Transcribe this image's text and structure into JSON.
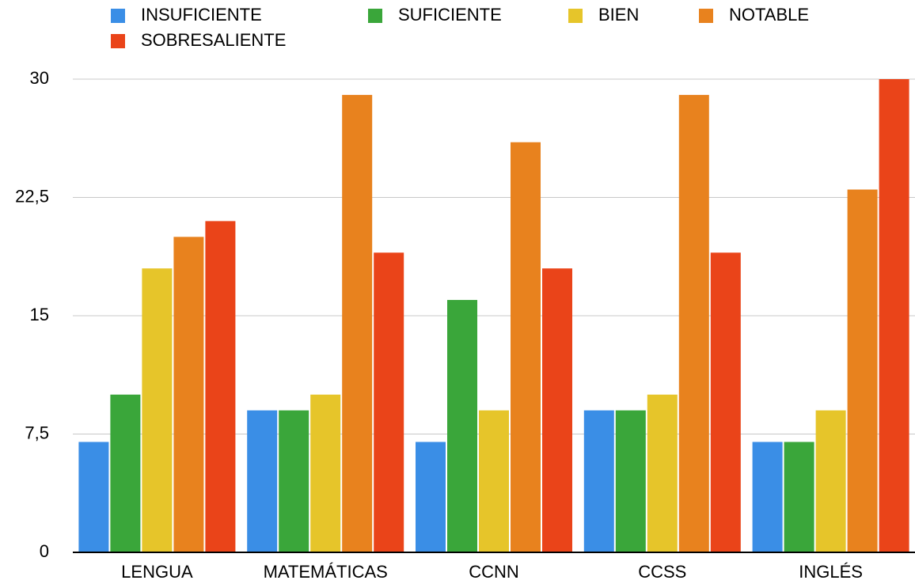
{
  "chart_data": {
    "type": "bar",
    "categories": [
      "LENGUA",
      "MATEMÁTICAS",
      "CCNN",
      "CCSS",
      "INGLÉS"
    ],
    "series": [
      {
        "name": "INSUFICIENTE",
        "color": "#3a8ee6",
        "values": [
          7,
          9,
          7,
          9,
          7
        ]
      },
      {
        "name": "SUFICIENTE",
        "color": "#3aa63a",
        "values": [
          10,
          9,
          16,
          9,
          7
        ]
      },
      {
        "name": "BIEN",
        "color": "#e6c52a",
        "values": [
          18,
          10,
          9,
          10,
          9
        ]
      },
      {
        "name": "NOTABLE",
        "color": "#e8821e",
        "values": [
          20,
          29,
          26,
          29,
          23
        ]
      },
      {
        "name": "SOBRESALIENTE",
        "color": "#ea4419",
        "values": [
          21,
          19,
          18,
          19,
          30
        ]
      }
    ],
    "ylim": [
      0,
      30
    ],
    "yticks": [
      0,
      {
        "value": 7.5,
        "label": "7,5"
      },
      15,
      {
        "value": 22.5,
        "label": "22,5"
      },
      30
    ],
    "grid": true
  }
}
